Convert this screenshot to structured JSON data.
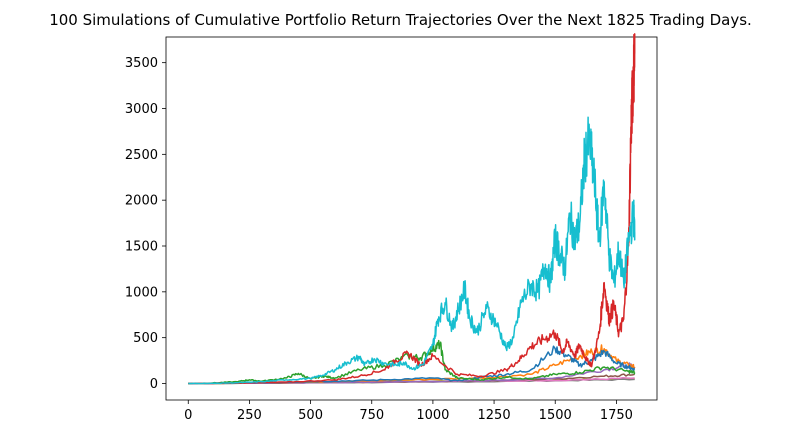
{
  "chart_data": {
    "type": "line",
    "title": "100 Simulations of Cumulative Portfolio Return Trajectories Over the Next 1825 Trading Days.",
    "xlabel": "",
    "ylabel": "",
    "xlim": [
      -91,
      1916
    ],
    "ylim": [
      -180,
      3780
    ],
    "x_ticks": [
      0,
      250,
      500,
      750,
      1000,
      1250,
      1500,
      1750
    ],
    "y_ticks": [
      0,
      500,
      1000,
      1500,
      2000,
      2500,
      3000,
      3500
    ],
    "grid": false,
    "legend": "none",
    "num_series_shown": 100,
    "series": [
      {
        "color": "#17becf",
        "x": [
          0,
          100,
          200,
          300,
          400,
          500,
          550,
          600,
          650,
          700,
          720,
          760,
          800,
          850,
          880,
          920,
          960,
          1000,
          1020,
          1050,
          1080,
          1100,
          1130,
          1150,
          1180,
          1220,
          1260,
          1300,
          1330,
          1360,
          1400,
          1430,
          1460,
          1480,
          1500,
          1520,
          1540,
          1560,
          1580,
          1600,
          1620,
          1640,
          1660,
          1680,
          1700,
          1720,
          1740,
          1760,
          1780,
          1800,
          1820,
          1825
        ],
        "values": [
          0,
          2,
          8,
          20,
          40,
          55,
          90,
          150,
          230,
          290,
          200,
          270,
          220,
          200,
          230,
          160,
          210,
          420,
          700,
          880,
          600,
          780,
          1030,
          720,
          560,
          820,
          650,
          380,
          500,
          880,
          1080,
          1000,
          1300,
          1100,
          1580,
          1400,
          1250,
          1850,
          1550,
          1750,
          2450,
          2650,
          2200,
          1550,
          2200,
          1400,
          1100,
          1450,
          1100,
          1550,
          1850,
          1650
        ]
      },
      {
        "color": "#d62728",
        "x": [
          0,
          200,
          400,
          600,
          700,
          800,
          850,
          900,
          950,
          1000,
          1100,
          1200,
          1300,
          1350,
          1400,
          1450,
          1500,
          1530,
          1550,
          1580,
          1600,
          1630,
          1650,
          1680,
          1700,
          1720,
          1740,
          1760,
          1780,
          1800,
          1810,
          1815,
          1820,
          1825
        ],
        "values": [
          0,
          5,
          15,
          40,
          80,
          150,
          250,
          330,
          200,
          300,
          100,
          80,
          150,
          250,
          400,
          480,
          550,
          350,
          450,
          300,
          420,
          250,
          200,
          550,
          1100,
          700,
          850,
          550,
          700,
          1500,
          2800,
          3100,
          3400,
          3600
        ]
      },
      {
        "color": "#2ca02c",
        "x": [
          0,
          100,
          200,
          250,
          300,
          400,
          450,
          500,
          550,
          600,
          700,
          800,
          900,
          950,
          1000,
          1030,
          1050,
          1100,
          1200,
          1300,
          1400,
          1500,
          1600,
          1700,
          1800,
          1825
        ],
        "values": [
          0,
          5,
          20,
          40,
          25,
          60,
          110,
          50,
          80,
          60,
          150,
          200,
          300,
          280,
          380,
          430,
          150,
          60,
          40,
          70,
          50,
          100,
          120,
          180,
          130,
          120
        ]
      },
      {
        "color": "#1f77b4",
        "x": [
          0,
          200,
          400,
          600,
          800,
          1000,
          1100,
          1200,
          1300,
          1400,
          1500,
          1550,
          1600,
          1650,
          1700,
          1750,
          1800,
          1825
        ],
        "values": [
          0,
          5,
          15,
          25,
          40,
          60,
          30,
          70,
          100,
          150,
          380,
          300,
          200,
          250,
          350,
          220,
          180,
          150
        ]
      },
      {
        "color": "#ff7f0e",
        "x": [
          0,
          300,
          600,
          900,
          1200,
          1400,
          1500,
          1600,
          1650,
          1700,
          1750,
          1800,
          1825
        ],
        "values": [
          0,
          10,
          20,
          40,
          60,
          100,
          200,
          300,
          350,
          380,
          250,
          200,
          180
        ]
      },
      {
        "color": "#9467bd",
        "x": [
          0,
          300,
          600,
          900,
          1200,
          1500,
          1700,
          1800,
          1825
        ],
        "values": [
          0,
          5,
          10,
          20,
          30,
          60,
          150,
          200,
          180
        ]
      },
      {
        "color": "#8c564b",
        "x": [
          0,
          400,
          800,
          1200,
          1500,
          1700,
          1825
        ],
        "values": [
          0,
          5,
          15,
          30,
          50,
          80,
          100
        ]
      },
      {
        "color": "#e377c2",
        "x": [
          0,
          400,
          800,
          1200,
          1600,
          1825
        ],
        "values": [
          0,
          10,
          20,
          25,
          40,
          60
        ]
      },
      {
        "color": "#7f7f7f",
        "x": [
          0,
          500,
          1000,
          1500,
          1825
        ],
        "values": [
          0,
          8,
          15,
          30,
          45
        ]
      },
      {
        "color": "#bcbd22",
        "x": [
          0,
          500,
          1000,
          1500,
          1825
        ],
        "values": [
          0,
          10,
          25,
          35,
          50
        ]
      }
    ]
  }
}
